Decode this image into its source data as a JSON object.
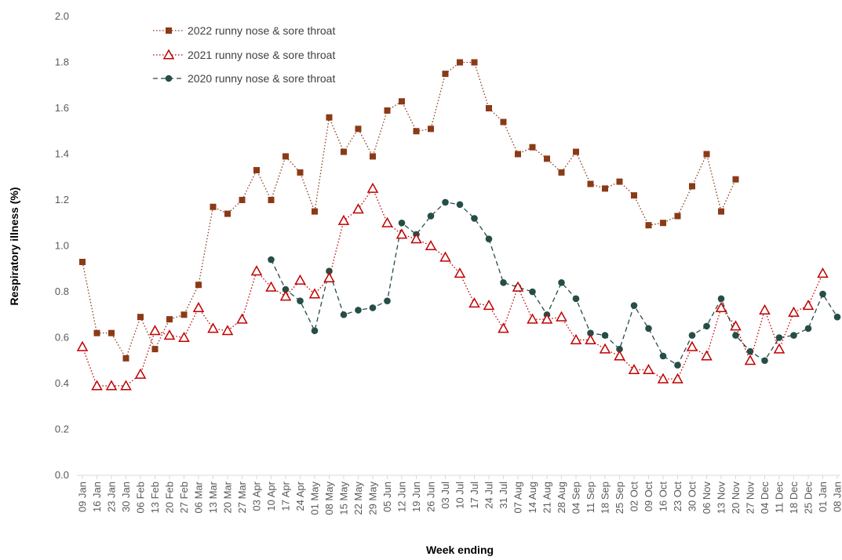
{
  "chart_data": {
    "type": "line",
    "xlabel": "Week ending",
    "ylabel": "Respiratory illness (%)",
    "ylim": [
      0,
      2.0
    ],
    "yticks": [
      "0.0",
      "0.2",
      "0.4",
      "0.6",
      "0.8",
      "1.0",
      "1.2",
      "1.4",
      "1.6",
      "1.8",
      "2.0"
    ],
    "grid": false,
    "legend_position": "top-left",
    "categories": [
      "09 Jan",
      "16 Jan",
      "23 Jan",
      "30 Jan",
      "06 Feb",
      "13 Feb",
      "20 Feb",
      "27 Feb",
      "06 Mar",
      "13 Mar",
      "20 Mar",
      "27 Mar",
      "03 Apr",
      "10 Apr",
      "17 Apr",
      "24 Apr",
      "01 May",
      "08 May",
      "15 May",
      "22 May",
      "29 May",
      "05 Jun",
      "12 Jun",
      "19 Jun",
      "26 Jun",
      "03 Jul",
      "10 Jul",
      "17 Jul",
      "24 Jul",
      "31 Jul",
      "07 Aug",
      "14 Aug",
      "21 Aug",
      "28 Aug",
      "04 Sep",
      "11 Sep",
      "18 Sep",
      "25 Sep",
      "02 Oct",
      "09 Oct",
      "16 Oct",
      "23 Oct",
      "30 Oct",
      "06 Nov",
      "13 Nov",
      "20 Nov",
      "27 Nov",
      "04 Dec",
      "11 Dec",
      "18 Dec",
      "25 Dec",
      "01 Jan",
      "08 Jan"
    ],
    "series": [
      {
        "name": "2022 runny nose & sore throat",
        "color": "#8B3A17",
        "marker": "square",
        "dash": "dotted",
        "values": [
          0.93,
          0.62,
          0.62,
          0.51,
          0.69,
          0.55,
          0.68,
          0.7,
          0.83,
          1.17,
          1.14,
          1.2,
          1.33,
          1.2,
          1.39,
          1.32,
          1.15,
          1.56,
          1.41,
          1.51,
          1.39,
          1.59,
          1.63,
          1.5,
          1.51,
          1.75,
          1.8,
          1.8,
          1.6,
          1.54,
          1.4,
          1.43,
          1.38,
          1.32,
          1.41,
          1.27,
          1.25,
          1.28,
          1.22,
          1.09,
          1.1,
          1.13,
          1.26,
          1.4,
          1.15,
          1.29,
          null,
          null,
          null,
          null,
          null,
          null,
          null
        ]
      },
      {
        "name": "2021 runny nose & sore throat",
        "color": "#C00000",
        "marker": "triangle",
        "dash": "dotted",
        "values": [
          0.56,
          0.39,
          0.39,
          0.39,
          0.44,
          0.63,
          0.61,
          0.6,
          0.73,
          0.64,
          0.63,
          0.68,
          0.89,
          0.82,
          0.78,
          0.85,
          0.79,
          0.86,
          1.11,
          1.16,
          1.25,
          1.1,
          1.05,
          1.03,
          1.0,
          0.95,
          0.88,
          0.75,
          0.74,
          0.64,
          0.82,
          0.68,
          0.68,
          0.69,
          0.59,
          0.59,
          0.55,
          0.52,
          0.46,
          0.46,
          0.42,
          0.42,
          0.56,
          0.52,
          0.73,
          0.65,
          0.5,
          0.72,
          0.55,
          0.71,
          0.74,
          0.88,
          null
        ]
      },
      {
        "name": "2020 runny nose & sore throat",
        "color": "#264D47",
        "marker": "circle",
        "dash": "dashed",
        "values": [
          null,
          null,
          null,
          null,
          null,
          null,
          null,
          null,
          null,
          null,
          null,
          null,
          null,
          0.94,
          0.81,
          0.76,
          0.63,
          0.89,
          0.7,
          0.72,
          0.73,
          0.76,
          1.1,
          1.05,
          1.13,
          1.19,
          1.18,
          1.12,
          1.03,
          0.84,
          0.82,
          0.8,
          0.7,
          0.84,
          0.77,
          0.62,
          0.61,
          0.55,
          0.74,
          0.64,
          0.52,
          0.48,
          0.61,
          0.65,
          0.77,
          0.61,
          0.54,
          0.5,
          0.6,
          0.61,
          0.64,
          0.79,
          0.69
        ]
      }
    ]
  }
}
